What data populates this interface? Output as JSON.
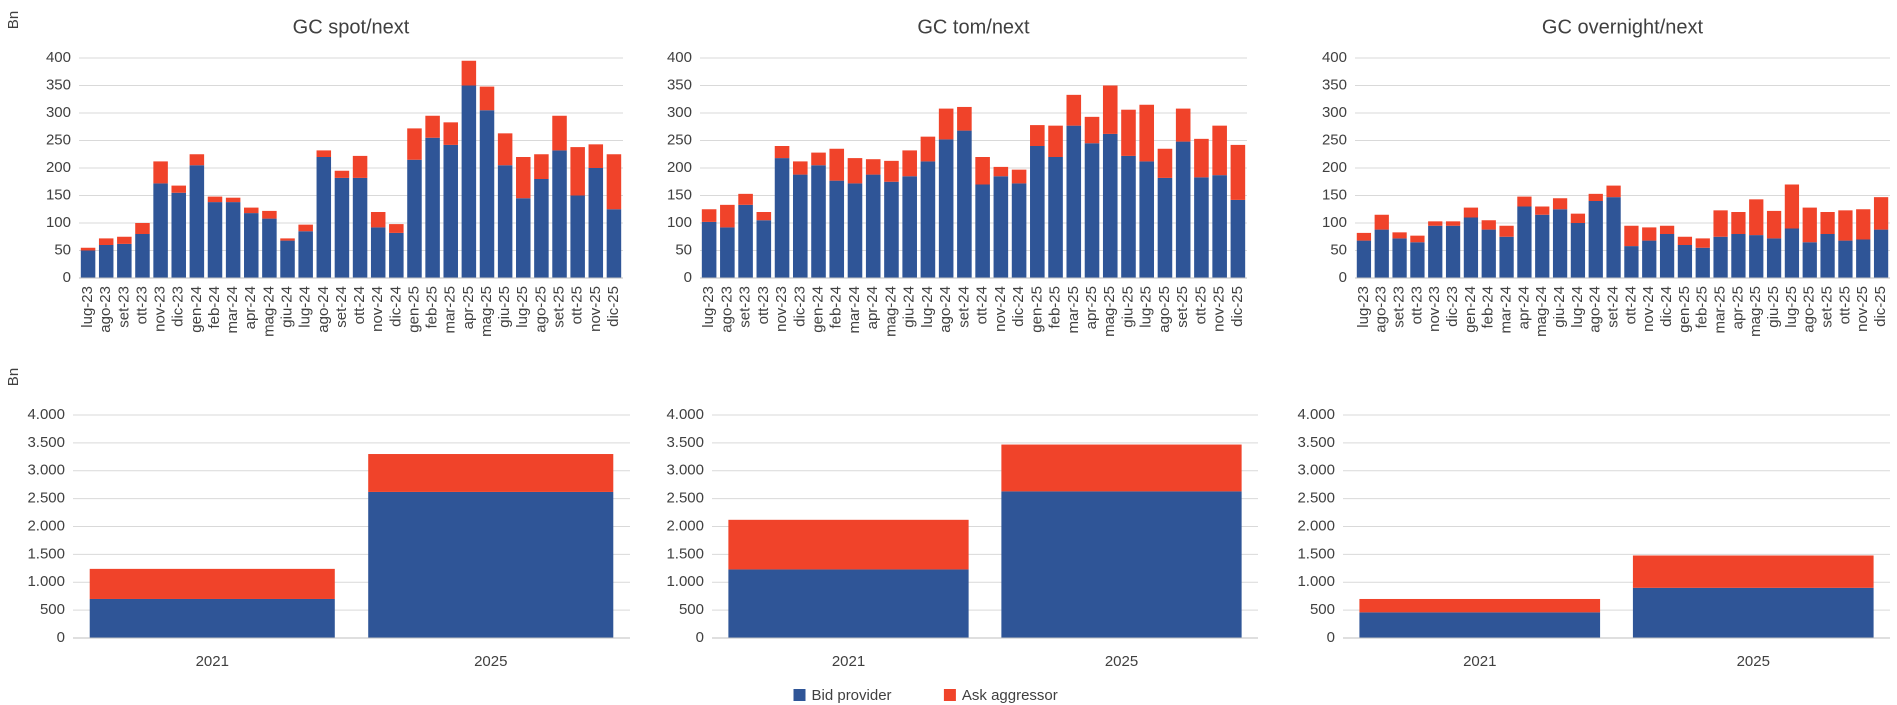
{
  "chart_data": [
    {
      "type": "bar",
      "stacked": true,
      "title": "GC spot/next",
      "y_label": "Bn",
      "categories": [
        "lug-23",
        "ago-23",
        "set-23",
        "ott-23",
        "nov-23",
        "dic-23",
        "gen-24",
        "feb-24",
        "mar-24",
        "apr-24",
        "mag-24",
        "giu-24",
        "lug-24",
        "ago-24",
        "set-24",
        "ott-24",
        "nov-24",
        "dic-24",
        "gen-25",
        "feb-25",
        "mar-25",
        "apr-25",
        "mag-25",
        "giu-25",
        "lug-25",
        "ago-25",
        "set-25",
        "ott-25",
        "nov-25",
        "dic-25"
      ],
      "series": [
        {
          "name": "Bid provider",
          "color": "#2f5597",
          "values": [
            50,
            60,
            62,
            80,
            172,
            155,
            205,
            138,
            138,
            118,
            108,
            68,
            85,
            220,
            182,
            182,
            92,
            82,
            215,
            255,
            242,
            350,
            305,
            205,
            145,
            180,
            232,
            150,
            200,
            125
          ]
        },
        {
          "name": "Ask aggressor",
          "color": "#f0432a",
          "values": [
            5,
            12,
            13,
            20,
            40,
            13,
            20,
            10,
            8,
            10,
            14,
            4,
            12,
            12,
            13,
            40,
            28,
            16,
            57,
            40,
            41,
            45,
            43,
            58,
            75,
            45,
            63,
            88,
            43,
            100
          ]
        }
      ],
      "ylim": [
        0,
        400
      ],
      "yticks": [
        0,
        50,
        100,
        150,
        200,
        250,
        300,
        350,
        400
      ],
      "grid": true
    },
    {
      "type": "bar",
      "stacked": true,
      "title": "GC tom/next",
      "categories": [
        "lug-23",
        "ago-23",
        "set-23",
        "ott-23",
        "nov-23",
        "dic-23",
        "gen-24",
        "feb-24",
        "mar-24",
        "apr-24",
        "mag-24",
        "giu-24",
        "lug-24",
        "ago-24",
        "set-24",
        "ott-24",
        "nov-24",
        "dic-24",
        "gen-25",
        "feb-25",
        "mar-25",
        "apr-25",
        "mag-25",
        "giu-25",
        "lug-25",
        "ago-25",
        "set-25",
        "ott-25",
        "nov-25",
        "dic-25"
      ],
      "series": [
        {
          "name": "Bid provider",
          "color": "#2f5597",
          "values": [
            102,
            92,
            133,
            105,
            218,
            188,
            205,
            177,
            172,
            188,
            175,
            185,
            212,
            252,
            268,
            170,
            185,
            172,
            240,
            220,
            277,
            245,
            262,
            222,
            212,
            182,
            248,
            183,
            187,
            142
          ]
        },
        {
          "name": "Ask aggressor",
          "color": "#f0432a",
          "values": [
            23,
            41,
            20,
            15,
            22,
            24,
            23,
            58,
            46,
            28,
            38,
            47,
            45,
            56,
            43,
            50,
            17,
            25,
            38,
            57,
            56,
            48,
            88,
            84,
            103,
            53,
            60,
            70,
            90,
            100
          ]
        }
      ],
      "ylim": [
        0,
        400
      ],
      "yticks": [
        0,
        50,
        100,
        150,
        200,
        250,
        300,
        350,
        400
      ],
      "grid": true
    },
    {
      "type": "bar",
      "stacked": true,
      "title": "GC overnight/next",
      "categories": [
        "lug-23",
        "ago-23",
        "set-23",
        "ott-23",
        "nov-23",
        "dic-23",
        "gen-24",
        "feb-24",
        "mar-24",
        "apr-24",
        "mag-24",
        "giu-24",
        "lug-24",
        "ago-24",
        "set-24",
        "ott-24",
        "nov-24",
        "dic-24",
        "gen-25",
        "feb-25",
        "mar-25",
        "apr-25",
        "mag-25",
        "giu-25",
        "lug-25",
        "ago-25",
        "set-25",
        "ott-25",
        "nov-25",
        "dic-25"
      ],
      "series": [
        {
          "name": "Bid provider",
          "color": "#2f5597",
          "values": [
            68,
            88,
            72,
            65,
            95,
            95,
            110,
            88,
            75,
            130,
            115,
            125,
            100,
            140,
            147,
            58,
            68,
            80,
            60,
            55,
            75,
            80,
            78,
            72,
            90,
            65,
            80,
            68,
            70,
            88
          ]
        },
        {
          "name": "Ask aggressor",
          "color": "#f0432a",
          "values": [
            14,
            27,
            11,
            12,
            8,
            8,
            18,
            17,
            20,
            18,
            15,
            20,
            17,
            13,
            21,
            37,
            24,
            15,
            15,
            17,
            48,
            40,
            65,
            50,
            80,
            63,
            40,
            55,
            55,
            59
          ]
        }
      ],
      "ylim": [
        0,
        400
      ],
      "yticks": [
        0,
        50,
        100,
        150,
        200,
        250,
        300,
        350,
        400
      ],
      "grid": true
    },
    {
      "type": "bar",
      "stacked": true,
      "y_label": "Bn",
      "categories": [
        "2021",
        "2025"
      ],
      "series": [
        {
          "name": "Bid provider",
          "color": "#2f5597",
          "values": [
            700,
            2620
          ]
        },
        {
          "name": "Ask aggressor",
          "color": "#f0432a",
          "values": [
            540,
            680
          ]
        }
      ],
      "ylim": [
        0,
        4000
      ],
      "yticks": [
        0,
        500,
        {
          "value": 1000,
          "label": "1.000"
        },
        {
          "value": 1500,
          "label": "1.500"
        },
        {
          "value": 2000,
          "label": "2.000"
        },
        {
          "value": 2500,
          "label": "2.500"
        },
        {
          "value": 3000,
          "label": "3.000"
        },
        {
          "value": 3500,
          "label": "3.500"
        },
        {
          "value": 4000,
          "label": "4.000"
        }
      ],
      "grid": true
    },
    {
      "type": "bar",
      "stacked": true,
      "legend": "bottom",
      "categories": [
        "2021",
        "2025"
      ],
      "series": [
        {
          "name": "Bid provider",
          "color": "#2f5597",
          "values": [
            1230,
            2630
          ]
        },
        {
          "name": "Ask aggressor",
          "color": "#f0432a",
          "values": [
            890,
            840
          ]
        }
      ],
      "ylim": [
        0,
        4000
      ],
      "yticks": [
        0,
        500,
        {
          "value": 1000,
          "label": "1.000"
        },
        {
          "value": 1500,
          "label": "1.500"
        },
        {
          "value": 2000,
          "label": "2.000"
        },
        {
          "value": 2500,
          "label": "2.500"
        },
        {
          "value": 3000,
          "label": "3.000"
        },
        {
          "value": 3500,
          "label": "3.500"
        },
        {
          "value": 4000,
          "label": "4.000"
        }
      ],
      "grid": true
    },
    {
      "type": "bar",
      "stacked": true,
      "categories": [
        "2021",
        "2025"
      ],
      "series": [
        {
          "name": "Bid provider",
          "color": "#2f5597",
          "values": [
            460,
            900
          ]
        },
        {
          "name": "Ask aggressor",
          "color": "#f0432a",
          "values": [
            240,
            580
          ]
        }
      ],
      "ylim": [
        0,
        4000
      ],
      "yticks": [
        0,
        500,
        {
          "value": 1000,
          "label": "1.000"
        },
        {
          "value": 1500,
          "label": "1.500"
        },
        {
          "value": 2000,
          "label": "2.000"
        },
        {
          "value": 2500,
          "label": "2.500"
        },
        {
          "value": 3000,
          "label": "3.000"
        },
        {
          "value": 3500,
          "label": "3.500"
        },
        {
          "value": 4000,
          "label": "4.000"
        }
      ],
      "grid": true
    }
  ]
}
